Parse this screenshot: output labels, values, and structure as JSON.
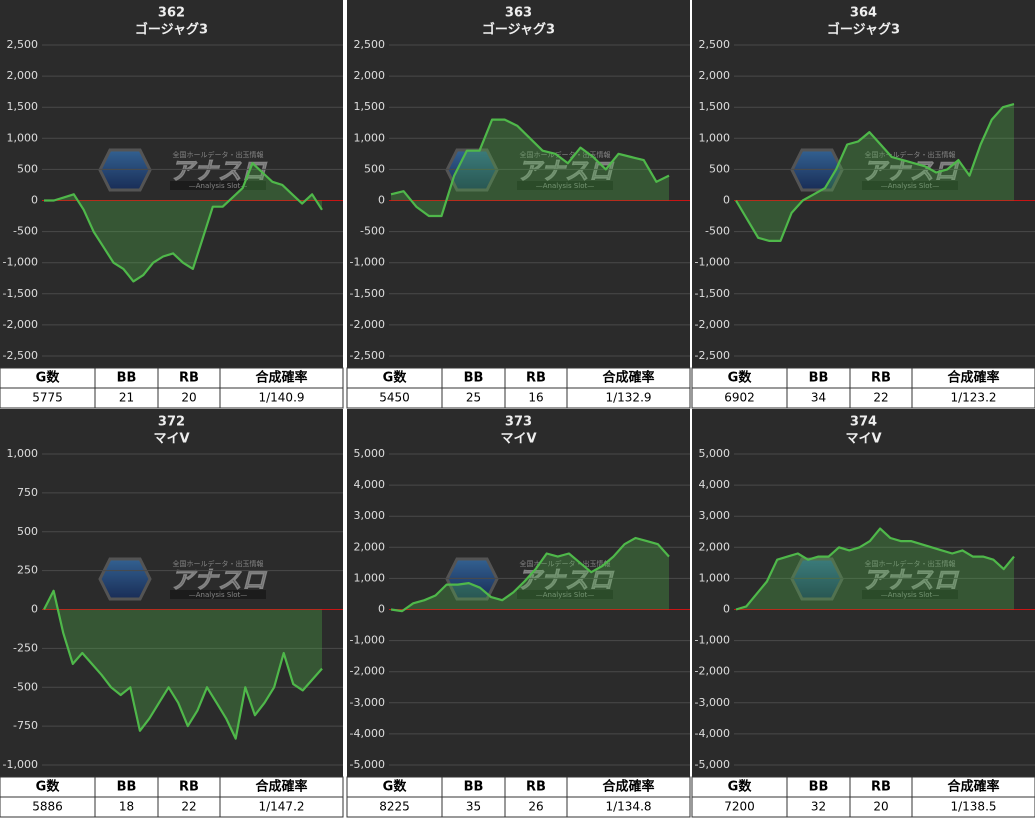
{
  "watermark": {
    "tagline": "全国ホールデータ・出玉情報",
    "title": "アナスロ",
    "subtitle": "—Analysis Slot—"
  },
  "chart_data": [
    {
      "type": "line",
      "title": "362",
      "subtitle": "ゴージャグ3",
      "color": "#4fb84a",
      "grid": true,
      "values": [
        0,
        0,
        50,
        100,
        -150,
        -500,
        -750,
        -1000,
        -1100,
        -1300,
        -1200,
        -1000,
        -900,
        -850,
        -1000,
        -1100,
        -600,
        -100,
        -100,
        50,
        200,
        600,
        450,
        300,
        250,
        100,
        -50,
        100,
        -150
      ],
      "ylim": [
        -2500,
        2500
      ],
      "yticks": [
        {
          "value": -2500,
          "label": "-2,500"
        },
        {
          "value": -2000,
          "label": "-2,000"
        },
        {
          "value": -1500,
          "label": "-1,500"
        },
        {
          "value": -1000,
          "label": "-1,000"
        },
        -500,
        0,
        500,
        {
          "value": 1000,
          "label": "1,000"
        },
        {
          "value": 1500,
          "label": "1,500"
        },
        {
          "value": 2000,
          "label": "2,000"
        },
        {
          "value": 2500,
          "label": "2,500"
        }
      ]
    },
    {
      "type": "line",
      "title": "363",
      "subtitle": "ゴージャグ3",
      "color": "#4fb84a",
      "grid": true,
      "values": [
        100,
        150,
        -100,
        -250,
        -250,
        400,
        800,
        800,
        1300,
        1300,
        1200,
        1000,
        800,
        750,
        600,
        850,
        700,
        500,
        750,
        700,
        650,
        300,
        400
      ],
      "ylim": [
        -2500,
        2500
      ],
      "yticks": [
        {
          "value": -2500,
          "label": "-2,500"
        },
        {
          "value": -2000,
          "label": "-2,000"
        },
        {
          "value": -1500,
          "label": "-1,500"
        },
        {
          "value": -1000,
          "label": "-1,000"
        },
        -500,
        0,
        500,
        {
          "value": 1000,
          "label": "1,000"
        },
        {
          "value": 1500,
          "label": "1,500"
        },
        {
          "value": 2000,
          "label": "2,000"
        },
        {
          "value": 2500,
          "label": "2,500"
        }
      ]
    },
    {
      "type": "line",
      "title": "364",
      "subtitle": "ゴージャグ3",
      "color": "#4fb84a",
      "grid": true,
      "values": [
        0,
        -300,
        -600,
        -650,
        -650,
        -200,
        0,
        100,
        200,
        500,
        900,
        950,
        1100,
        900,
        700,
        650,
        600,
        550,
        450,
        500,
        650,
        400,
        900,
        1300,
        1500,
        1550
      ],
      "ylim": [
        -2500,
        2500
      ],
      "yticks": [
        {
          "value": -2500,
          "label": "-2,500"
        },
        {
          "value": -2000,
          "label": "-2,000"
        },
        {
          "value": -1500,
          "label": "-1,500"
        },
        {
          "value": -1000,
          "label": "-1,000"
        },
        -500,
        0,
        500,
        {
          "value": 1000,
          "label": "1,000"
        },
        {
          "value": 1500,
          "label": "1,500"
        },
        {
          "value": 2000,
          "label": "2,000"
        },
        {
          "value": 2500,
          "label": "2,500"
        }
      ]
    },
    {
      "type": "line",
      "title": "372",
      "subtitle": "マイV",
      "color": "#4fb84a",
      "grid": true,
      "values": [
        0,
        120,
        -150,
        -350,
        -280,
        -350,
        -420,
        -500,
        -550,
        -500,
        -780,
        -700,
        -600,
        -500,
        -600,
        -750,
        -650,
        -500,
        -600,
        -700,
        -830,
        -500,
        -680,
        -600,
        -500,
        -280,
        -480,
        -520,
        -450,
        -380
      ],
      "ylim": [
        -1000,
        1000
      ],
      "yticks": [
        {
          "value": -1000,
          "label": "-1,000"
        },
        -750,
        -500,
        -250,
        0,
        250,
        500,
        750,
        {
          "value": 1000,
          "label": "1,000"
        }
      ]
    },
    {
      "type": "line",
      "title": "373",
      "subtitle": "マイV",
      "color": "#4fb84a",
      "grid": true,
      "values": [
        0,
        -50,
        200,
        300,
        450,
        800,
        800,
        850,
        700,
        400,
        300,
        550,
        900,
        1300,
        1800,
        1700,
        1800,
        1500,
        1200,
        1400,
        1700,
        2100,
        2300,
        2200,
        2100,
        1700
      ],
      "ylim": [
        -5000,
        5000
      ],
      "yticks": [
        {
          "value": -5000,
          "label": "-5,000"
        },
        {
          "value": -4000,
          "label": "-4,000"
        },
        {
          "value": -3000,
          "label": "-3,000"
        },
        {
          "value": -2000,
          "label": "-2,000"
        },
        {
          "value": -1000,
          "label": "-1,000"
        },
        0,
        {
          "value": 1000,
          "label": "1,000"
        },
        {
          "value": 2000,
          "label": "2,000"
        },
        {
          "value": 3000,
          "label": "3,000"
        },
        {
          "value": 4000,
          "label": "4,000"
        },
        {
          "value": 5000,
          "label": "5,000"
        }
      ]
    },
    {
      "type": "line",
      "title": "374",
      "subtitle": "マイV",
      "color": "#4fb84a",
      "grid": true,
      "values": [
        0,
        100,
        500,
        900,
        1600,
        1700,
        1800,
        1600,
        1700,
        1700,
        2000,
        1900,
        2000,
        2200,
        2600,
        2300,
        2200,
        2200,
        2100,
        2000,
        1900,
        1800,
        1900,
        1700,
        1700,
        1600,
        1300,
        1700
      ],
      "ylim": [
        -5000,
        5000
      ],
      "yticks": [
        {
          "value": -5000,
          "label": "-5,000"
        },
        {
          "value": -4000,
          "label": "-4,000"
        },
        {
          "value": -3000,
          "label": "-3,000"
        },
        {
          "value": -2000,
          "label": "-2,000"
        },
        {
          "value": -1000,
          "label": "-1,000"
        },
        0,
        {
          "value": 1000,
          "label": "1,000"
        },
        {
          "value": 2000,
          "label": "2,000"
        },
        {
          "value": 3000,
          "label": "3,000"
        },
        {
          "value": 4000,
          "label": "4,000"
        },
        {
          "value": 5000,
          "label": "5,000"
        }
      ]
    }
  ],
  "stats": [
    {
      "header": [
        "G数",
        "BB",
        "RB",
        "合成確率"
      ],
      "row": [
        "5775",
        "21",
        "20",
        "1/140.9"
      ]
    },
    {
      "header": [
        "G数",
        "BB",
        "RB",
        "合成確率"
      ],
      "row": [
        "5450",
        "25",
        "16",
        "1/132.9"
      ]
    },
    {
      "header": [
        "G数",
        "BB",
        "RB",
        "合成確率"
      ],
      "row": [
        "6902",
        "34",
        "22",
        "1/123.2"
      ]
    },
    {
      "header": [
        "G数",
        "BB",
        "RB",
        "合成確率"
      ],
      "row": [
        "5886",
        "18",
        "22",
        "1/147.2"
      ]
    },
    {
      "header": [
        "G数",
        "BB",
        "RB",
        "合成確率"
      ],
      "row": [
        "8225",
        "35",
        "26",
        "1/134.8"
      ]
    },
    {
      "header": [
        "G数",
        "BB",
        "RB",
        "合成確率"
      ],
      "row": [
        "7200",
        "32",
        "20",
        "1/138.5"
      ]
    }
  ]
}
